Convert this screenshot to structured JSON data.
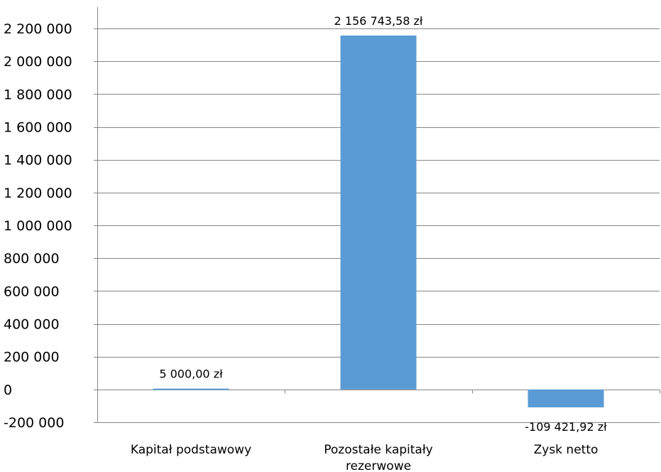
{
  "chart_data": {
    "type": "bar",
    "categories": [
      [
        "Kapitał podstawowy"
      ],
      [
        "Pozostałe kapitały",
        "rezerwowe"
      ],
      [
        "Zysk netto"
      ]
    ],
    "values": [
      5000.0,
      2156743.58,
      -109421.92
    ],
    "data_labels": [
      "5 000,00 zł",
      "2 156 743,58 zł",
      "-109 421,92 zł"
    ],
    "yticks": [
      -200000,
      0,
      200000,
      400000,
      600000,
      800000,
      1000000,
      1200000,
      1400000,
      1600000,
      1800000,
      2000000,
      2200000
    ],
    "ytick_labels": [
      "-200 000",
      "0",
      "200 000",
      "400 000",
      "600 000",
      "800 000",
      "1 000 000",
      "1 200 000",
      "1 400 000",
      "1 600 000",
      "1 800 000",
      "2 000 000",
      "2 200 000"
    ],
    "ylim": [
      -200000,
      2200000
    ],
    "grid": true,
    "bar_color": "#5b9bd5",
    "grid_color": "#868686",
    "title": "",
    "xlabel": "",
    "ylabel": ""
  }
}
